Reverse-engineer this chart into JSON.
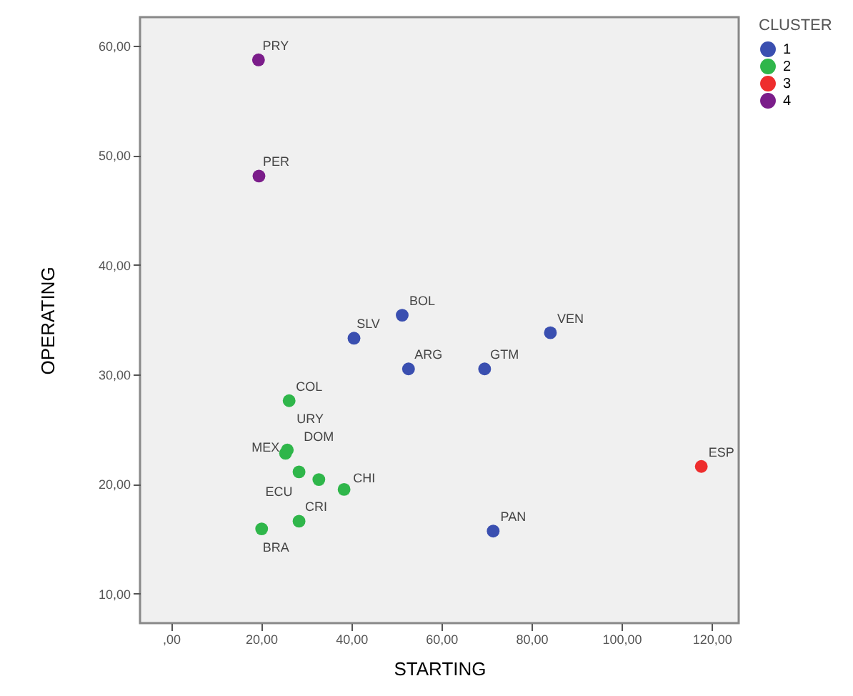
{
  "chart_data": {
    "type": "scatter",
    "xlabel": "STARTING",
    "ylabel": "OPERATING",
    "legend_title": "CLUSTER",
    "legend": "top right",
    "marker": "circle",
    "xlim": [
      -6.9,
      126
    ],
    "ylim": [
      7.3,
      62.6
    ],
    "xticks": [
      {
        "value": 0,
        "label": ",00"
      },
      {
        "value": 20,
        "label": "20,00"
      },
      {
        "value": 40,
        "label": "40,00"
      },
      {
        "value": 60,
        "label": "60,00"
      },
      {
        "value": 80,
        "label": "80,00"
      },
      {
        "value": 100,
        "label": "100,00"
      },
      {
        "value": 120,
        "label": "120,00"
      }
    ],
    "yticks": [
      {
        "value": 10,
        "label": "10,00"
      },
      {
        "value": 20,
        "label": "20,00"
      },
      {
        "value": 30,
        "label": "30,00"
      },
      {
        "value": 40,
        "label": "40,00"
      },
      {
        "value": 50,
        "label": "50,00"
      },
      {
        "value": 60,
        "label": "60,00"
      }
    ],
    "series": [
      {
        "name": "1",
        "color": "#3a4fb0",
        "x": [
          51.3,
          40.6,
          52.7,
          69.6,
          84.2,
          71.5
        ],
        "values": [
          35.4,
          33.3,
          30.5,
          30.5,
          33.8,
          15.7
        ]
      },
      {
        "name": "2",
        "color": "#2fb64a",
        "x": [
          26.2,
          25.4,
          25.8,
          32.8,
          28.4,
          38.4,
          28.4,
          20.1
        ],
        "values": [
          27.6,
          22.8,
          23.1,
          20.4,
          21.1,
          19.5,
          16.6,
          15.9
        ]
      },
      {
        "name": "3",
        "color": "#ee2d2d",
        "x": [
          117.7
        ],
        "values": [
          21.6
        ]
      },
      {
        "name": "4",
        "color": "#7b1d8a",
        "x": [
          19.4,
          19.5
        ],
        "values": [
          58.7,
          48.1
        ]
      }
    ],
    "annotations": [
      {
        "text": "PRY",
        "x": 19.4,
        "y": 58.7
      },
      {
        "text": "PER",
        "x": 19.5,
        "y": 48.1
      },
      {
        "text": "BOL",
        "x": 51.3,
        "y": 35.4
      },
      {
        "text": "SLV",
        "x": 40.6,
        "y": 33.3
      },
      {
        "text": "VEN",
        "x": 84.2,
        "y": 33.8
      },
      {
        "text": "ARG",
        "x": 52.7,
        "y": 30.5
      },
      {
        "text": "GTM",
        "x": 69.6,
        "y": 30.5
      },
      {
        "text": "COL",
        "x": 26.2,
        "y": 27.6
      },
      {
        "text": "URY",
        "x": 25.8,
        "y": 23.1
      },
      {
        "text": "MEX",
        "x": 25.4,
        "y": 22.8
      },
      {
        "text": "DOM",
        "x": 32.8,
        "y": 20.4
      },
      {
        "text": "ECU",
        "x": 28.4,
        "y": 21.1
      },
      {
        "text": "CHI",
        "x": 38.4,
        "y": 19.5
      },
      {
        "text": "CRI",
        "x": 28.4,
        "y": 16.6
      },
      {
        "text": "BRA",
        "x": 20.1,
        "y": 15.9
      },
      {
        "text": "PAN",
        "x": 71.5,
        "y": 15.7
      },
      {
        "text": "ESP",
        "x": 117.7,
        "y": 21.6
      }
    ]
  }
}
